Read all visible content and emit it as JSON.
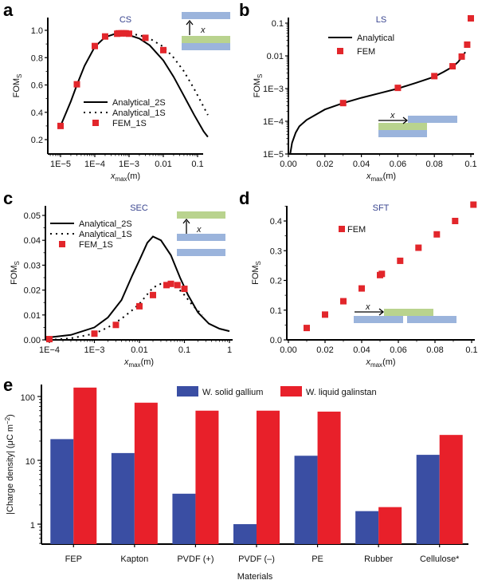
{
  "chart_data": [
    {
      "panel": "a",
      "type": "line",
      "title": "CS",
      "xlabel": "x_max(m)",
      "ylabel": "FOM_S",
      "xscale": "log",
      "xlim": [
        5e-06,
        0.6
      ],
      "ylim": [
        0.12,
        1.1
      ],
      "xticks": [
        {
          "v": 1e-05,
          "label": "1E−5"
        },
        {
          "v": 0.0001,
          "label": "1E−4"
        },
        {
          "v": 0.001,
          "label": "1E−3"
        },
        {
          "v": 0.01,
          "label": "0.01"
        },
        {
          "v": 0.1,
          "label": "0.1"
        }
      ],
      "yticks": [
        {
          "v": 0.2,
          "label": "0.2"
        },
        {
          "v": 0.4,
          "label": "0.4"
        },
        {
          "v": 0.6,
          "label": "0.6"
        },
        {
          "v": 0.8,
          "label": "0.8"
        },
        {
          "v": 1.0,
          "label": "1.0"
        }
      ],
      "legend_position": "center",
      "series": [
        {
          "name": "Analytical_2S",
          "style": "solid",
          "x": [
            1e-05,
            2e-05,
            3e-05,
            5e-05,
            0.0001,
            0.0002,
            0.0004,
            0.0006,
            0.001,
            0.002,
            0.004,
            0.01,
            0.02,
            0.04,
            0.08,
            0.15,
            0.2
          ],
          "y": [
            0.3,
            0.48,
            0.6,
            0.74,
            0.88,
            0.95,
            0.975,
            0.975,
            0.965,
            0.94,
            0.89,
            0.78,
            0.66,
            0.52,
            0.38,
            0.26,
            0.22
          ]
        },
        {
          "name": "Analytical_1S",
          "style": "dotted",
          "x": [
            0.0005,
            0.001,
            0.002,
            0.004,
            0.01,
            0.02,
            0.04,
            0.08,
            0.15,
            0.2
          ],
          "y": [
            0.975,
            0.975,
            0.965,
            0.94,
            0.88,
            0.8,
            0.7,
            0.57,
            0.44,
            0.38
          ]
        },
        {
          "name": "FEM_1S",
          "style": "marker",
          "x": [
            1e-05,
            3e-05,
            0.0001,
            0.0002,
            0.00045,
            0.0005,
            0.0006,
            0.0007,
            0.0008,
            0.001,
            0.003,
            0.01
          ],
          "y": [
            0.3,
            0.605,
            0.885,
            0.955,
            0.975,
            0.978,
            0.978,
            0.978,
            0.978,
            0.975,
            0.945,
            0.855
          ]
        }
      ],
      "inset": "top-right: blue bar above, arrow x up from green bar over blue bar"
    },
    {
      "panel": "b",
      "type": "line",
      "title": "LS",
      "xlabel": "x_max(m)",
      "ylabel": "FOM_S",
      "yscale": "log",
      "xlim": [
        0,
        0.1
      ],
      "ylim": [
        1e-05,
        0.2
      ],
      "xticks": [
        {
          "v": 0,
          "label": "0.00"
        },
        {
          "v": 0.02,
          "label": "0.02"
        },
        {
          "v": 0.04,
          "label": "0.04"
        },
        {
          "v": 0.06,
          "label": "0.06"
        },
        {
          "v": 0.08,
          "label": "0.08"
        },
        {
          "v": 0.1,
          "label": "0.1"
        }
      ],
      "yticks": [
        {
          "v": 1e-05,
          "label": "1E−5"
        },
        {
          "v": 0.0001,
          "label": "1E−4"
        },
        {
          "v": 0.001,
          "label": "1E−3"
        },
        {
          "v": 0.01,
          "label": "0.01"
        },
        {
          "v": 0.1,
          "label": "0.1"
        }
      ],
      "legend_position": "top-left",
      "series": [
        {
          "name": "Analytical",
          "style": "solid",
          "x": [
            0.001,
            0.002,
            0.004,
            0.006,
            0.01,
            0.02,
            0.03,
            0.04,
            0.05,
            0.06,
            0.07,
            0.08,
            0.085,
            0.09,
            0.093,
            0.095,
            0.097
          ],
          "y": [
            1e-05,
            2.2e-05,
            4.5e-05,
            7e-05,
            0.00011,
            0.00023,
            0.00036,
            0.00052,
            0.00072,
            0.001,
            0.0015,
            0.0023,
            0.0032,
            0.0046,
            0.0065,
            0.009,
            0.013
          ]
        },
        {
          "name": "FEM",
          "style": "marker",
          "x": [
            0.03,
            0.06,
            0.08,
            0.09,
            0.095,
            0.098,
            0.1
          ],
          "y": [
            0.00036,
            0.00105,
            0.0024,
            0.0048,
            0.0095,
            0.022,
            0.14
          ]
        }
      ],
      "inset": "bottom-right: arrow x to offset blue bar over green/blue bars"
    },
    {
      "panel": "c",
      "type": "line",
      "title": "SEC",
      "xlabel": "x_max(m)",
      "ylabel": "FOM_S",
      "xscale": "log",
      "xlim": [
        0.0001,
        1
      ],
      "ylim": [
        0,
        0.055
      ],
      "xticks": [
        {
          "v": 0.0001,
          "label": "1E−4"
        },
        {
          "v": 0.001,
          "label": "1E−3"
        },
        {
          "v": 0.01,
          "label": "0.01"
        },
        {
          "v": 0.1,
          "label": "0.1"
        },
        {
          "v": 1,
          "label": "1"
        }
      ],
      "yticks": [
        {
          "v": 0,
          "label": "0.00"
        },
        {
          "v": 0.01,
          "label": "0.01"
        },
        {
          "v": 0.02,
          "label": "0.02"
        },
        {
          "v": 0.03,
          "label": "0.03"
        },
        {
          "v": 0.04,
          "label": "0.04"
        },
        {
          "v": 0.05,
          "label": "0.05"
        }
      ],
      "legend_position": "top-left",
      "series": [
        {
          "name": "Analytical_2S",
          "style": "solid",
          "x": [
            0.0001,
            0.0003,
            0.001,
            0.002,
            0.004,
            0.007,
            0.01,
            0.015,
            0.02,
            0.03,
            0.05,
            0.08,
            0.12,
            0.2,
            0.35,
            0.6,
            1
          ],
          "y": [
            0.001,
            0.002,
            0.005,
            0.009,
            0.016,
            0.026,
            0.032,
            0.039,
            0.0415,
            0.04,
            0.034,
            0.025,
            0.018,
            0.011,
            0.0065,
            0.0045,
            0.0035
          ]
        },
        {
          "name": "Analytical_1S",
          "style": "dotted",
          "x": [
            0.0001,
            0.0003,
            0.001,
            0.002,
            0.004,
            0.007,
            0.01,
            0.02,
            0.03,
            0.05,
            0.07,
            0.1,
            0.15,
            0.25
          ],
          "y": [
            0,
            0.0006,
            0.0025,
            0.005,
            0.0085,
            0.012,
            0.0145,
            0.021,
            0.0225,
            0.0225,
            0.021,
            0.018,
            0.014,
            0.01
          ]
        },
        {
          "name": "FEM_1S",
          "style": "marker",
          "x": [
            0.0001,
            0.001,
            0.003,
            0.01,
            0.02,
            0.04,
            0.05,
            0.07,
            0.1
          ],
          "y": [
            0.0003,
            0.0025,
            0.006,
            0.0135,
            0.018,
            0.022,
            0.0225,
            0.022,
            0.0205
          ]
        }
      ],
      "inset": "top-right: green bar above, arrow x up from blue bar, blue bar below"
    },
    {
      "panel": "d",
      "type": "scatter",
      "title": "SFT",
      "xlabel": "x_max(m)",
      "ylabel": "FOM_S",
      "xlim": [
        0,
        0.1
      ],
      "ylim": [
        0,
        0.47
      ],
      "xticks": [
        {
          "v": 0,
          "label": "0.00"
        },
        {
          "v": 0.02,
          "label": "0.02"
        },
        {
          "v": 0.04,
          "label": "0.04"
        },
        {
          "v": 0.06,
          "label": "0.06"
        },
        {
          "v": 0.08,
          "label": "0.08"
        },
        {
          "v": 0.1,
          "label": "0.1"
        }
      ],
      "yticks": [
        {
          "v": 0,
          "label": "0.0"
        },
        {
          "v": 0.1,
          "label": "0.1"
        },
        {
          "v": 0.2,
          "label": "0.2"
        },
        {
          "v": 0.3,
          "label": "0.3"
        },
        {
          "v": 0.4,
          "label": "0.4"
        }
      ],
      "legend_position": "top-left",
      "series": [
        {
          "name": "FEM",
          "style": "marker",
          "x": [
            0.01,
            0.02,
            0.03,
            0.04,
            0.05,
            0.051,
            0.061,
            0.071,
            0.081,
            0.091,
            0.101
          ],
          "y": [
            0.04,
            0.085,
            0.13,
            0.173,
            0.218,
            0.222,
            0.266,
            0.31,
            0.355,
            0.4,
            0.455
          ]
        }
      ],
      "inset": "bottom-right: arrow x to green bar above two blue segments"
    },
    {
      "panel": "e",
      "type": "bar",
      "title": "",
      "xlabel": "Materials",
      "ylabel": "|Charge density| (μC m−2)",
      "yscale": "log",
      "ylim": [
        0.5,
        170
      ],
      "yticks": [
        {
          "v": 1,
          "label": "1"
        },
        {
          "v": 10,
          "label": "10"
        },
        {
          "v": 100,
          "label": "100"
        }
      ],
      "legend_position": "top-right",
      "categories": [
        "FEP",
        "Kapton",
        "PVDF (+)",
        "PVDF (–)",
        "PE",
        "Rubber",
        "Cellulose*"
      ],
      "series": [
        {
          "name": "W. solid gallium",
          "color": "#3a4ea3",
          "values": [
            21.5,
            13,
            3,
            1,
            11.8,
            1.6,
            12.2
          ]
        },
        {
          "name": "W. liquid galinstan",
          "color": "#e8202a",
          "values": [
            138,
            80,
            60,
            60,
            58,
            1.85,
            25
          ]
        }
      ]
    }
  ],
  "colors": {
    "marker": "#e2262b",
    "line": "#000000",
    "title": "#3a4690",
    "inset_blue": "#9bb4dc",
    "inset_green": "#b9d38e"
  },
  "panels": {
    "a": "a",
    "b": "b",
    "c": "c",
    "d": "d",
    "e": "e"
  }
}
